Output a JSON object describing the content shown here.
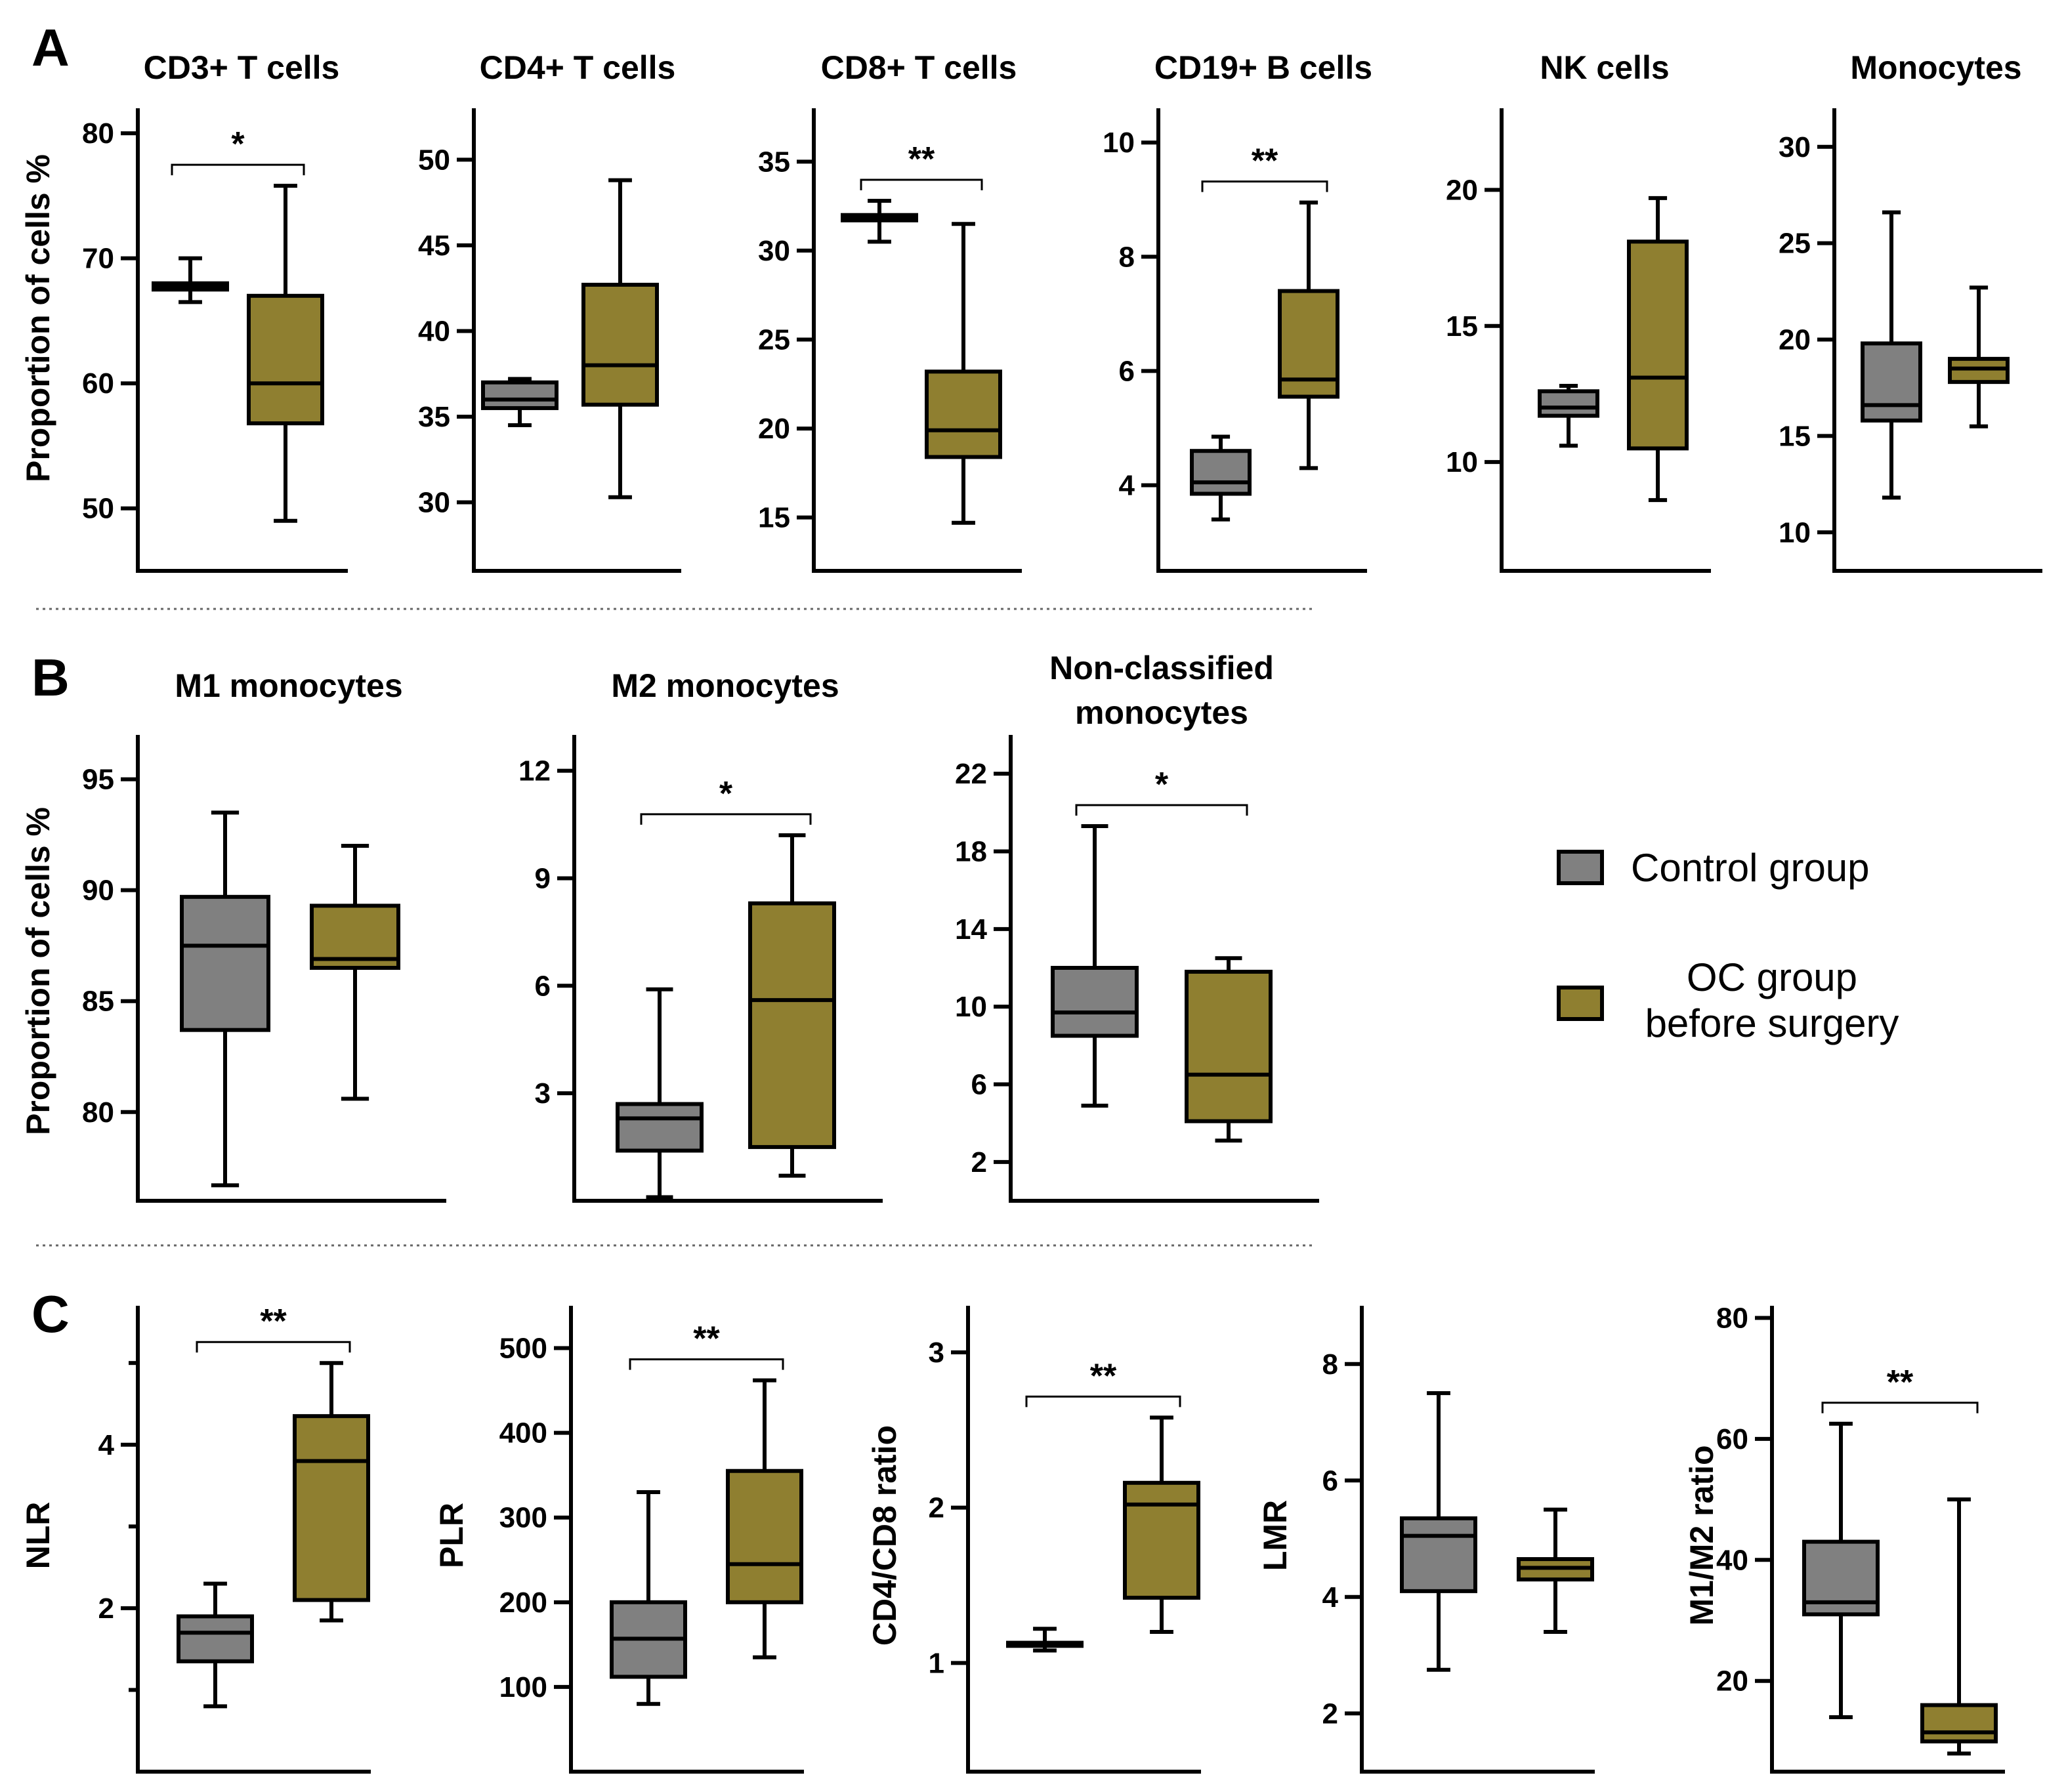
{
  "colors": {
    "control": "#808080",
    "oc": "#8f7f30",
    "stroke": "#000000",
    "separator": "#666666"
  },
  "legend": {
    "control_label": "Control group",
    "oc_label_line1": "OC group",
    "oc_label_line2": "before surgery"
  },
  "panels": [
    {
      "letter": "A"
    },
    {
      "letter": "B"
    },
    {
      "letter": "C"
    }
  ],
  "chart_data": [
    {
      "type": "box",
      "panel": "A",
      "title": "CD3+ T cells",
      "ylabel": "Proportion of cells %",
      "ylim": [
        45,
        82
      ],
      "ticks": [
        50,
        60,
        70,
        80
      ],
      "series": [
        {
          "name": "Control group",
          "min": 66.5,
          "q1": 67.5,
          "median": 67.8,
          "q3": 68.0,
          "max": 70
        },
        {
          "name": "OC group before surgery",
          "min": 49,
          "q1": 56.8,
          "median": 60,
          "q3": 67,
          "max": 75.8
        }
      ],
      "significance": "*"
    },
    {
      "type": "box",
      "panel": "A",
      "title": "CD4+ T cells",
      "ylabel": "",
      "ylim": [
        26,
        53
      ],
      "ticks": [
        30,
        35,
        40,
        45,
        50
      ],
      "series": [
        {
          "name": "Control group",
          "min": 34.5,
          "q1": 35.5,
          "median": 36,
          "q3": 37,
          "max": 37.2
        },
        {
          "name": "OC group before surgery",
          "min": 30.3,
          "q1": 35.7,
          "median": 38,
          "q3": 42.7,
          "max": 48.8
        }
      ],
      "significance": ""
    },
    {
      "type": "box",
      "panel": "A",
      "title": "CD8+ T cells",
      "ylabel": "",
      "ylim": [
        12,
        38
      ],
      "ticks": [
        15,
        20,
        25,
        30,
        35
      ],
      "series": [
        {
          "name": "Control group",
          "min": 30.5,
          "q1": 31.7,
          "median": 31.8,
          "q3": 32.0,
          "max": 32.8
        },
        {
          "name": "OC group before surgery",
          "min": 14.7,
          "q1": 18.4,
          "median": 19.9,
          "q3": 23.2,
          "max": 31.5
        }
      ],
      "significance": "**"
    },
    {
      "type": "box",
      "panel": "A",
      "title": "CD19+ B cells",
      "ylabel": "",
      "ylim": [
        2.5,
        10.6
      ],
      "ticks": [
        4,
        6,
        8,
        10
      ],
      "series": [
        {
          "name": "Control group",
          "min": 3.4,
          "q1": 3.85,
          "median": 4.05,
          "q3": 4.6,
          "max": 4.85
        },
        {
          "name": "OC group before surgery",
          "min": 4.3,
          "q1": 5.55,
          "median": 5.85,
          "q3": 7.4,
          "max": 8.95
        }
      ],
      "significance": "**"
    },
    {
      "type": "box",
      "panel": "A",
      "title": "NK cells",
      "ylabel": "",
      "ylim": [
        6,
        23
      ],
      "ticks": [
        10,
        15,
        20
      ],
      "series": [
        {
          "name": "Control group",
          "min": 10.6,
          "q1": 11.7,
          "median": 12.0,
          "q3": 12.6,
          "max": 12.8
        },
        {
          "name": "OC group before surgery",
          "min": 8.6,
          "q1": 10.5,
          "median": 13.1,
          "q3": 18.1,
          "max": 19.7
        }
      ],
      "significance": ""
    },
    {
      "type": "box",
      "panel": "A",
      "title": "Monocytes",
      "ylabel": "",
      "ylim": [
        8,
        32
      ],
      "ticks": [
        10,
        15,
        20,
        25,
        30
      ],
      "series": [
        {
          "name": "Control group",
          "min": 11.8,
          "q1": 15.8,
          "median": 16.6,
          "q3": 19.8,
          "max": 26.6
        },
        {
          "name": "OC group before surgery",
          "min": 15.5,
          "q1": 17.8,
          "median": 18.5,
          "q3": 19.0,
          "max": 22.7
        }
      ],
      "significance": ""
    },
    {
      "type": "box",
      "panel": "B",
      "title": "M1 monocytes",
      "ylabel": "Proportion of cells %",
      "ylim": [
        76,
        97
      ],
      "ticks": [
        80,
        85,
        90,
        95
      ],
      "series": [
        {
          "name": "Control group",
          "min": 76.7,
          "q1": 83.7,
          "median": 87.5,
          "q3": 89.7,
          "max": 93.5
        },
        {
          "name": "OC group before surgery",
          "min": 80.6,
          "q1": 86.5,
          "median": 86.9,
          "q3": 89.3,
          "max": 92
        }
      ],
      "significance": ""
    },
    {
      "type": "box",
      "panel": "B",
      "title": "M2 monocytes",
      "ylabel": "",
      "ylim": [
        0,
        13
      ],
      "ticks": [
        3,
        6,
        9,
        12
      ],
      "series": [
        {
          "name": "Control group",
          "min": 0.1,
          "q1": 1.4,
          "median": 2.3,
          "q3": 2.7,
          "max": 5.9
        },
        {
          "name": "OC group before surgery",
          "min": 0.7,
          "q1": 1.5,
          "median": 5.6,
          "q3": 8.3,
          "max": 10.2
        }
      ],
      "significance": "*"
    },
    {
      "type": "box",
      "panel": "B",
      "title_line1": "Non-classified",
      "title_line2": "monocytes",
      "ylabel": "",
      "ylim": [
        0,
        24
      ],
      "ticks": [
        2,
        6,
        10,
        14,
        18,
        22
      ],
      "series": [
        {
          "name": "Control group",
          "min": 4.9,
          "q1": 8.5,
          "median": 9.7,
          "q3": 12.0,
          "max": 19.3
        },
        {
          "name": "OC group before surgery",
          "min": 3.1,
          "q1": 4.1,
          "median": 6.5,
          "q3": 11.8,
          "max": 12.5
        }
      ],
      "significance": "*"
    },
    {
      "type": "box",
      "panel": "C",
      "title": "",
      "ylabel": "NLR",
      "ylim": [
        0,
        5.7
      ],
      "ticks": [
        2,
        4
      ],
      "minor_ticks": [
        1,
        3,
        5
      ],
      "series": [
        {
          "name": "Control group",
          "min": 0.8,
          "q1": 1.35,
          "median": 1.7,
          "q3": 1.9,
          "max": 2.3
        },
        {
          "name": "OC group before surgery",
          "min": 1.85,
          "q1": 2.1,
          "median": 3.8,
          "q3": 4.35,
          "max": 5.0
        }
      ],
      "significance": "**"
    },
    {
      "type": "box",
      "panel": "C",
      "title": "",
      "ylabel": "PLR",
      "ylim": [
        0,
        550
      ],
      "ticks": [
        100,
        200,
        300,
        400,
        500
      ],
      "series": [
        {
          "name": "Control group",
          "min": 80,
          "q1": 112,
          "median": 157,
          "q3": 200,
          "max": 330
        },
        {
          "name": "OC group before surgery",
          "min": 135,
          "q1": 200,
          "median": 245,
          "q3": 355,
          "max": 462
        }
      ],
      "significance": "**"
    },
    {
      "type": "box",
      "panel": "C",
      "title": "",
      "ylabel": "CD4/CD8 ratio",
      "ylim": [
        0.3,
        3.3
      ],
      "ticks": [
        1,
        2,
        3
      ],
      "series": [
        {
          "name": "Control group",
          "min": 1.08,
          "q1": 1.11,
          "median": 1.12,
          "q3": 1.13,
          "max": 1.22
        },
        {
          "name": "OC group before surgery",
          "min": 1.2,
          "q1": 1.42,
          "median": 2.02,
          "q3": 2.16,
          "max": 2.58
        }
      ],
      "significance": "**"
    },
    {
      "type": "box",
      "panel": "C",
      "title": "",
      "ylabel": "LMR",
      "ylim": [
        1.0,
        9.0
      ],
      "ticks": [
        2,
        4,
        6,
        8
      ],
      "series": [
        {
          "name": "Control group",
          "min": 2.75,
          "q1": 4.1,
          "median": 5.05,
          "q3": 5.35,
          "max": 7.5
        },
        {
          "name": "OC group before surgery",
          "min": 3.4,
          "q1": 4.3,
          "median": 4.5,
          "q3": 4.65,
          "max": 5.5
        }
      ],
      "significance": ""
    },
    {
      "type": "box",
      "panel": "C",
      "title": "",
      "ylabel": "M1/M2 ratio",
      "ylim": [
        5,
        82
      ],
      "ticks": [
        20,
        40,
        60,
        80
      ],
      "series": [
        {
          "name": "Control group",
          "min": 14,
          "q1": 31,
          "median": 33,
          "q3": 43,
          "max": 62.5
        },
        {
          "name": "OC group before surgery",
          "min": 8,
          "q1": 10,
          "median": 11.5,
          "q3": 16,
          "max": 50
        }
      ],
      "significance": "**"
    }
  ]
}
